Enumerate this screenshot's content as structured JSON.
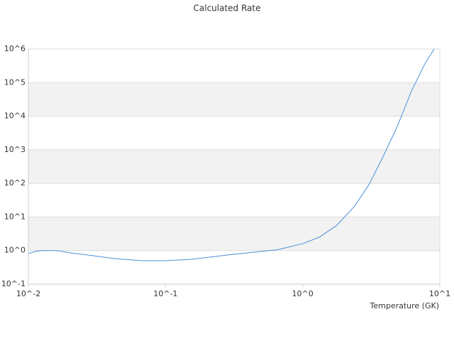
{
  "chart_data": {
    "type": "line",
    "title": "Calculated Rate",
    "x_label": "Temperature (GK)",
    "xscale": "log",
    "yscale": "log",
    "grid": true,
    "x": [
      0.01,
      0.0113,
      0.0127,
      0.0161,
      0.0204,
      0.0292,
      0.0418,
      0.0673,
      0.1,
      0.155,
      0.316,
      0.646,
      1,
      1.32,
      1.77,
      2.39,
      3.04,
      3.86,
      4.9,
      6.21,
      7.88,
      9.1
    ],
    "series": [
      {
        "color": "#4a90d9",
        "values": [
          0.81,
          0.95,
          1.0,
          1.0,
          0.85,
          0.71,
          0.58,
          0.5,
          0.5,
          0.55,
          0.78,
          1.05,
          1.6,
          2.5,
          5.6,
          21,
          91,
          630,
          5000,
          56000,
          400000,
          1000000
        ]
      }
    ],
    "xlim": [
      0.01,
      10
    ],
    "xticks": [
      {
        "value": 0.01,
        "label": "10^-2"
      },
      {
        "value": 0.1,
        "label": "10^-1"
      },
      {
        "value": 1,
        "label": "10^0"
      },
      {
        "value": 10,
        "label": "10^1"
      }
    ],
    "ylim": [
      0.1,
      1000000
    ],
    "yticks": [
      {
        "value": 0.1,
        "label": "10^-1"
      },
      {
        "value": 1,
        "label": "10^0"
      },
      {
        "value": 10,
        "label": "10^1"
      },
      {
        "value": 100,
        "label": "10^2"
      },
      {
        "value": 1000,
        "label": "10^3"
      },
      {
        "value": 10000,
        "label": "10^4"
      },
      {
        "value": 100000,
        "label": "10^5"
      },
      {
        "value": 1000000,
        "label": "10^6"
      }
    ]
  }
}
